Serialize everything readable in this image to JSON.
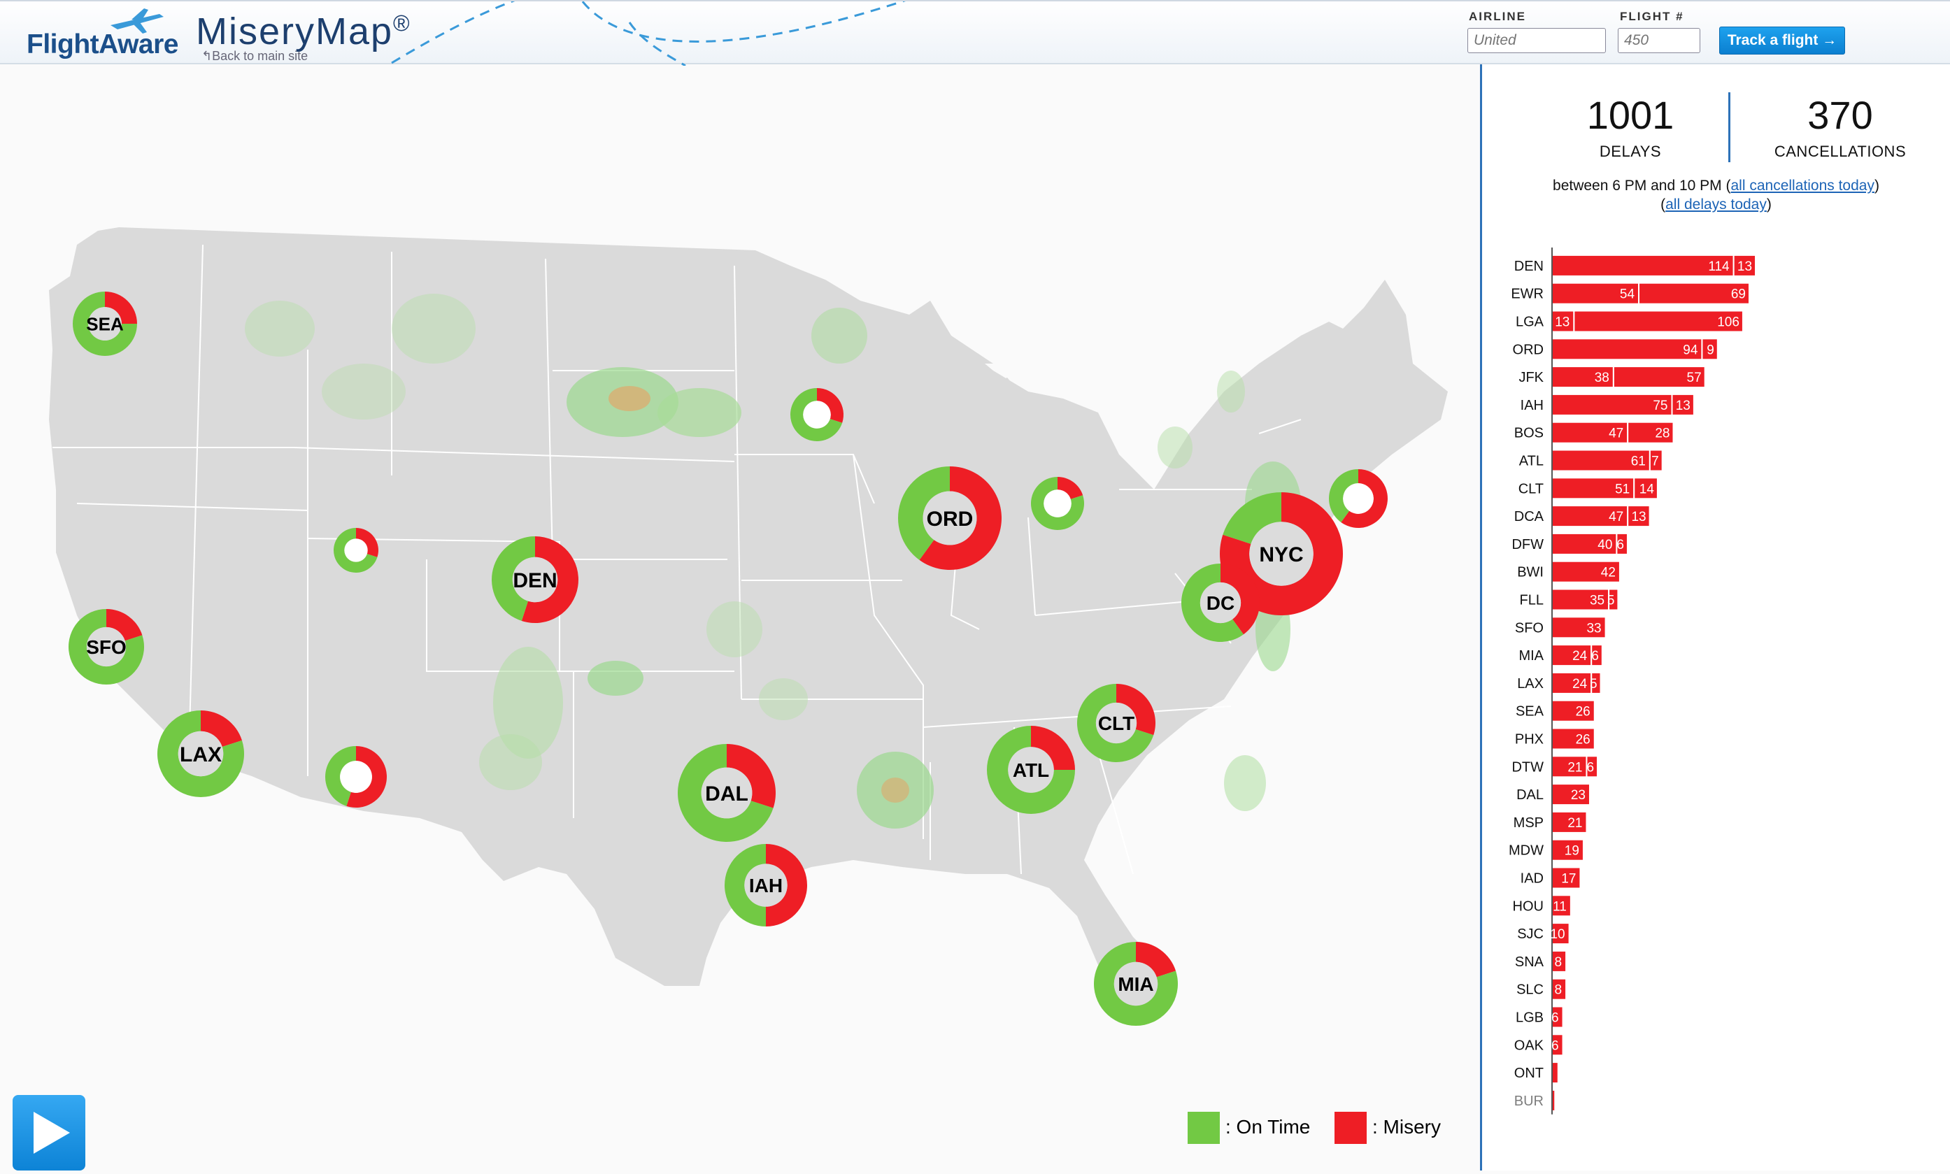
{
  "header": {
    "logo_text": "FlightAware",
    "app_title": "MiseryMap",
    "trademark": "®",
    "back_link": "↰Back to main site",
    "airline_label": "AIRLINE",
    "airline_placeholder": "United",
    "flight_label": "FLIGHT #",
    "flight_placeholder": "450",
    "track_button": "Track a flight →"
  },
  "colors": {
    "on_time": "#72c944",
    "misery": "#ee1e25",
    "accent": "#2d72b8",
    "land": "#dadada"
  },
  "stats": {
    "delays_value": "1001",
    "delays_label": "DELAYS",
    "cancellations_value": "370",
    "cancellations_label": "CANCELLATIONS",
    "range_prefix": "between 6 PM and 10 PM (",
    "all_cancellations_link": "all cancellations today",
    "range_suffix": ")",
    "all_delays_link": "all delays today"
  },
  "legend": {
    "on_time": ": On Time",
    "misery": ": Misery"
  },
  "airports_on_map": [
    {
      "code": "SEA",
      "misery_fraction": 0.25
    },
    {
      "code": "SFO",
      "misery_fraction": 0.2
    },
    {
      "code": "LAX",
      "misery_fraction": 0.2
    },
    {
      "code": "DEN",
      "misery_fraction": 0.55
    },
    {
      "code": "ORD",
      "misery_fraction": 0.6
    },
    {
      "code": "NYC",
      "misery_fraction": 0.8
    },
    {
      "code": "DC",
      "misery_fraction": 0.4
    },
    {
      "code": "CLT",
      "misery_fraction": 0.3
    },
    {
      "code": "ATL",
      "misery_fraction": 0.25
    },
    {
      "code": "DAL",
      "misery_fraction": 0.3
    },
    {
      "code": "IAH",
      "misery_fraction": 0.5
    },
    {
      "code": "MIA",
      "misery_fraction": 0.2
    },
    {
      "code": "",
      "misery_fraction": 0.3
    },
    {
      "code": "",
      "misery_fraction": 0.6
    },
    {
      "code": "",
      "misery_fraction": 0.2
    },
    {
      "code": "",
      "misery_fraction": 0.3
    },
    {
      "code": "",
      "misery_fraction": 0.55
    }
  ],
  "chart_data": {
    "type": "bar",
    "orientation": "horizontal",
    "series": [
      {
        "name": "DELAYS",
        "color": "#ee1e25"
      },
      {
        "name": "CANCELLATIONS",
        "color": "#ee1e25"
      }
    ],
    "rows": [
      {
        "code": "DEN",
        "delays": 114,
        "cancellations": 13
      },
      {
        "code": "EWR",
        "delays": 54,
        "cancellations": 69
      },
      {
        "code": "LGA",
        "delays": 13,
        "cancellations": 106
      },
      {
        "code": "ORD",
        "delays": 94,
        "cancellations": 9
      },
      {
        "code": "JFK",
        "delays": 38,
        "cancellations": 57
      },
      {
        "code": "IAH",
        "delays": 75,
        "cancellations": 13
      },
      {
        "code": "BOS",
        "delays": 47,
        "cancellations": 28
      },
      {
        "code": "ATL",
        "delays": 61,
        "cancellations": 7
      },
      {
        "code": "CLT",
        "delays": 51,
        "cancellations": 14
      },
      {
        "code": "DCA",
        "delays": 47,
        "cancellations": 13
      },
      {
        "code": "DFW",
        "delays": 40,
        "cancellations": 6
      },
      {
        "code": "BWI",
        "delays": 42,
        "cancellations": 0
      },
      {
        "code": "FLL",
        "delays": 35,
        "cancellations": 5
      },
      {
        "code": "SFO",
        "delays": 33,
        "cancellations": 0
      },
      {
        "code": "MIA",
        "delays": 24,
        "cancellations": 6
      },
      {
        "code": "LAX",
        "delays": 24,
        "cancellations": 5
      },
      {
        "code": "SEA",
        "delays": 26,
        "cancellations": 0
      },
      {
        "code": "PHX",
        "delays": 26,
        "cancellations": 0
      },
      {
        "code": "DTW",
        "delays": 21,
        "cancellations": 6
      },
      {
        "code": "DAL",
        "delays": 23,
        "cancellations": 0
      },
      {
        "code": "MSP",
        "delays": 21,
        "cancellations": 0
      },
      {
        "code": "MDW",
        "delays": 19,
        "cancellations": 0
      },
      {
        "code": "IAD",
        "delays": 17,
        "cancellations": 0
      },
      {
        "code": "HOU",
        "delays": 11,
        "cancellations": 0
      },
      {
        "code": "SJC",
        "delays": 10,
        "cancellations": 0
      },
      {
        "code": "SNA",
        "delays": 8,
        "cancellations": 0
      },
      {
        "code": "SLC",
        "delays": 8,
        "cancellations": 0
      },
      {
        "code": "LGB",
        "delays": 6,
        "cancellations": 0
      },
      {
        "code": "OAK",
        "delays": 6,
        "cancellations": 0
      },
      {
        "code": "ONT",
        "delays": 3,
        "cancellations": 0
      },
      {
        "code": "BUR",
        "delays": 1,
        "cancellations": 0
      }
    ],
    "value_labels_shown_min": 5
  }
}
